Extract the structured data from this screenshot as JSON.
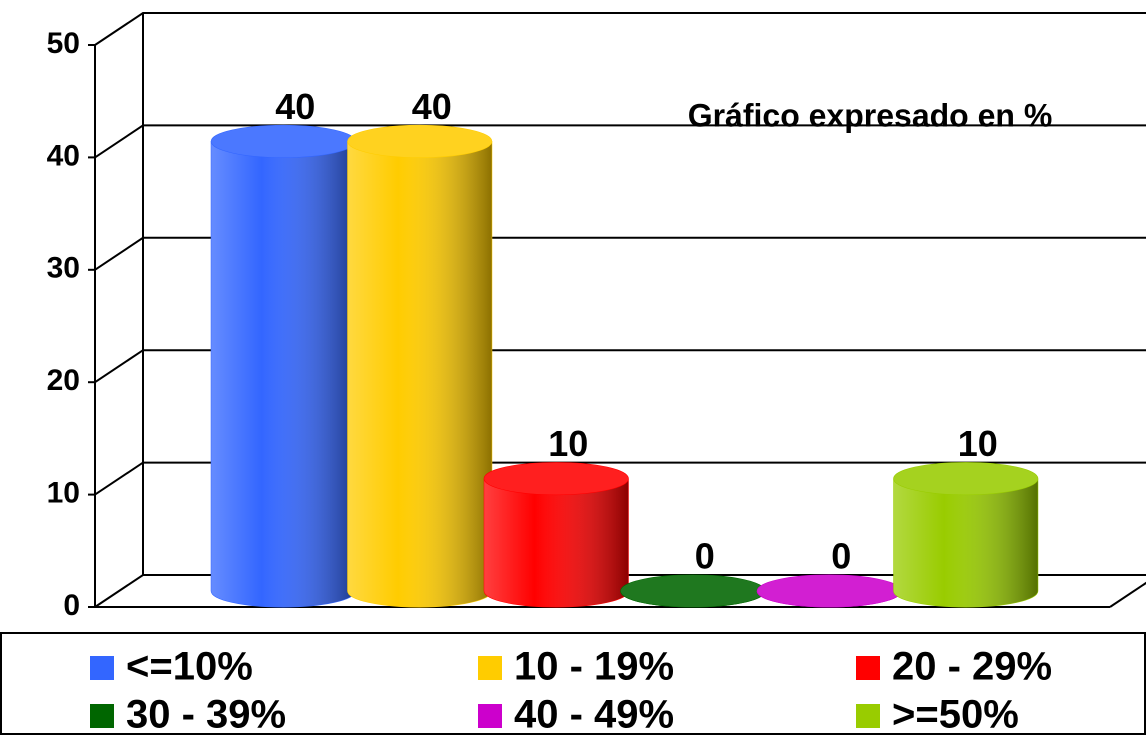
{
  "chart_data": {
    "type": "bar",
    "annotation": "Gráfico expresado en %",
    "categories": [
      "<=10%",
      "10 - 19%",
      "20 - 29%",
      "30 - 39%",
      "40 - 49%",
      ">=50%"
    ],
    "values": [
      40,
      40,
      10,
      0,
      0,
      10
    ],
    "colors": [
      "#3366ff",
      "#ffcc00",
      "#ff0000",
      "#006600",
      "#cc00cc",
      "#99cc00"
    ],
    "ylim": [
      0,
      50
    ],
    "yticks": [
      0,
      10,
      20,
      30,
      40,
      50
    ],
    "grid": true,
    "legend": "bottom"
  }
}
